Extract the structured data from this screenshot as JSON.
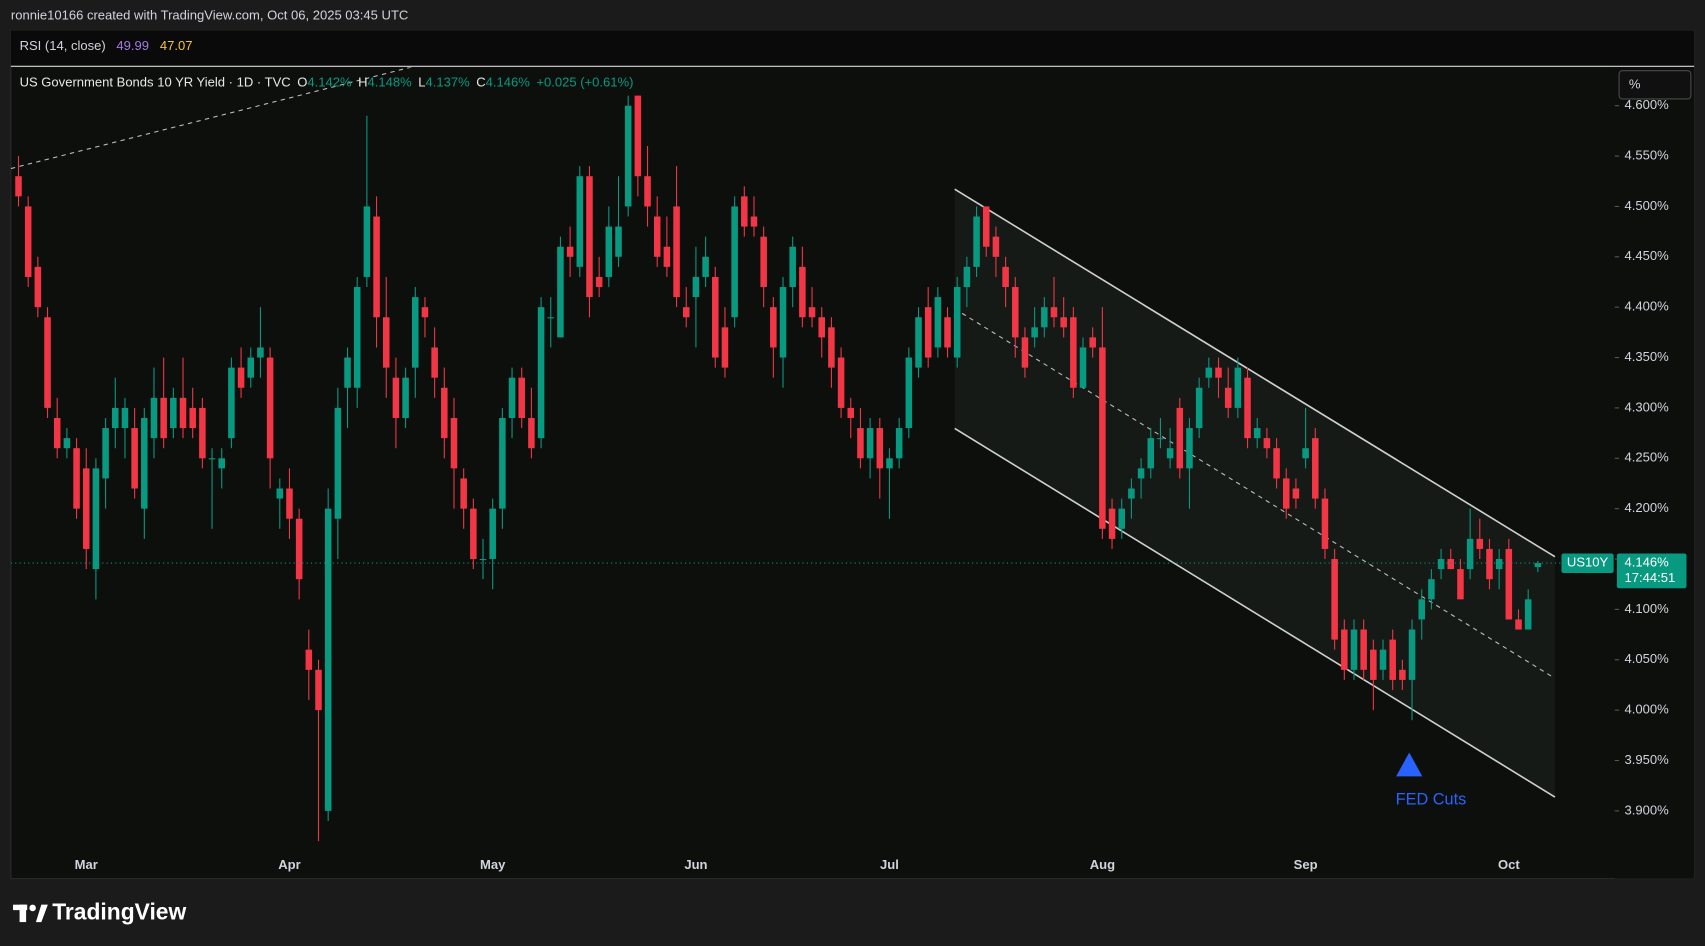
{
  "header": {
    "credit": "ronnie10166 created with TradingView.com, Oct 06, 2025 03:45 UTC"
  },
  "indicator": {
    "name": "RSI (14, close)",
    "value1": "49.99",
    "value2": "47.07"
  },
  "legend": {
    "symbol": "US Government Bonds 10 YR Yield · 1D · TVC",
    "open_label": "O",
    "open": "4.142%",
    "high_label": "H",
    "high": "4.148%",
    "low_label": "L",
    "low": "4.137%",
    "close_label": "C",
    "close": "4.146%",
    "change": "+0.025 (+0.61%)"
  },
  "scale_button": "%",
  "price_tag": {
    "ticker": "US10Y",
    "price": "4.146%",
    "countdown": "17:44:51"
  },
  "annotation": "FED Cuts",
  "logo": "TradingView",
  "chart_data": {
    "type": "candlestick",
    "up_color": "#089981",
    "down_color": "#f23645",
    "ylim": [
      3.863,
      4.638
    ],
    "yticks": [
      {
        "value": 3.9,
        "label": "3.900%"
      },
      {
        "value": 3.95,
        "label": "3.950%"
      },
      {
        "value": 4.0,
        "label": "4.000%"
      },
      {
        "value": 4.05,
        "label": "4.050%"
      },
      {
        "value": 4.1,
        "label": "4.100%"
      },
      {
        "value": 4.15,
        "label": "4.150%"
      },
      {
        "value": 4.2,
        "label": "4.200%"
      },
      {
        "value": 4.25,
        "label": "4.250%"
      },
      {
        "value": 4.3,
        "label": "4.300%"
      },
      {
        "value": 4.35,
        "label": "4.350%"
      },
      {
        "value": 4.4,
        "label": "4.400%"
      },
      {
        "value": 4.45,
        "label": "4.450%"
      },
      {
        "value": 4.5,
        "label": "4.500%"
      },
      {
        "value": 4.55,
        "label": "4.550%"
      },
      {
        "value": 4.6,
        "label": "4.600%"
      }
    ],
    "categories": [
      null,
      null,
      null,
      null,
      null,
      null,
      null,
      "Mar",
      null,
      null,
      null,
      null,
      null,
      null,
      null,
      null,
      null,
      null,
      null,
      null,
      null,
      null,
      null,
      null,
      null,
      null,
      null,
      null,
      "Apr",
      null,
      null,
      null,
      null,
      null,
      null,
      null,
      null,
      null,
      null,
      null,
      null,
      null,
      null,
      null,
      null,
      null,
      null,
      null,
      null,
      "May",
      null,
      null,
      null,
      null,
      null,
      null,
      null,
      null,
      null,
      null,
      null,
      null,
      null,
      null,
      null,
      null,
      null,
      null,
      null,
      null,
      "Jun",
      null,
      null,
      null,
      null,
      null,
      null,
      null,
      null,
      null,
      null,
      null,
      null,
      null,
      null,
      null,
      null,
      null,
      null,
      null,
      "Jul",
      null,
      null,
      null,
      null,
      null,
      null,
      null,
      null,
      null,
      null,
      null,
      null,
      null,
      null,
      null,
      null,
      null,
      null,
      null,
      null,
      null,
      "Aug",
      null,
      null,
      null,
      null,
      null,
      null,
      null,
      null,
      null,
      null,
      null,
      null,
      null,
      null,
      null,
      null,
      null,
      null,
      null,
      null,
      "Sep",
      null,
      null,
      null,
      null,
      null,
      null,
      null,
      null,
      null,
      null,
      null,
      null,
      null,
      null,
      null,
      null,
      null,
      null,
      null,
      null,
      "Oct",
      null,
      null,
      null
    ],
    "ohlc": [
      [
        4.53,
        4.55,
        4.5,
        4.51
      ],
      [
        4.5,
        4.51,
        4.42,
        4.43
      ],
      [
        4.44,
        4.45,
        4.39,
        4.4
      ],
      [
        4.39,
        4.4,
        4.29,
        4.3
      ],
      [
        4.29,
        4.31,
        4.25,
        4.26
      ],
      [
        4.26,
        4.28,
        4.25,
        4.27
      ],
      [
        4.26,
        4.27,
        4.19,
        4.2
      ],
      [
        4.24,
        4.26,
        4.14,
        4.16
      ],
      [
        4.14,
        4.25,
        4.11,
        4.24
      ],
      [
        4.23,
        4.29,
        4.2,
        4.28
      ],
      [
        4.28,
        4.33,
        4.26,
        4.3
      ],
      [
        4.28,
        4.31,
        4.25,
        4.3
      ],
      [
        4.28,
        4.3,
        4.21,
        4.22
      ],
      [
        4.2,
        4.3,
        4.17,
        4.29
      ],
      [
        4.27,
        4.34,
        4.25,
        4.31
      ],
      [
        4.31,
        4.35,
        4.26,
        4.27
      ],
      [
        4.28,
        4.32,
        4.27,
        4.31
      ],
      [
        4.31,
        4.35,
        4.27,
        4.28
      ],
      [
        4.3,
        4.32,
        4.27,
        4.28
      ],
      [
        4.3,
        4.31,
        4.24,
        4.25
      ],
      [
        4.25,
        4.26,
        4.18,
        4.25
      ],
      [
        4.24,
        4.26,
        4.22,
        4.25
      ],
      [
        4.27,
        4.35,
        4.26,
        4.34
      ],
      [
        4.34,
        4.36,
        4.31,
        4.32
      ],
      [
        4.33,
        4.36,
        4.32,
        4.35
      ],
      [
        4.35,
        4.4,
        4.33,
        4.36
      ],
      [
        4.35,
        4.36,
        4.22,
        4.25
      ],
      [
        4.21,
        4.23,
        4.18,
        4.22
      ],
      [
        4.22,
        4.24,
        4.17,
        4.19
      ],
      [
        4.19,
        4.2,
        4.11,
        4.13
      ],
      [
        4.06,
        4.08,
        4.01,
        4.04
      ],
      [
        4.04,
        4.05,
        3.87,
        4.0
      ],
      [
        3.9,
        4.22,
        3.89,
        4.2
      ],
      [
        4.19,
        4.32,
        4.15,
        4.3
      ],
      [
        4.32,
        4.36,
        4.28,
        4.35
      ],
      [
        4.32,
        4.43,
        4.3,
        4.42
      ],
      [
        4.43,
        4.59,
        4.42,
        4.5
      ],
      [
        4.49,
        4.51,
        4.36,
        4.39
      ],
      [
        4.39,
        4.43,
        4.31,
        4.34
      ],
      [
        4.33,
        4.35,
        4.26,
        4.29
      ],
      [
        4.29,
        4.34,
        4.28,
        4.33
      ],
      [
        4.34,
        4.42,
        4.31,
        4.41
      ],
      [
        4.4,
        4.41,
        4.37,
        4.39
      ],
      [
        4.36,
        4.38,
        4.31,
        4.33
      ],
      [
        4.32,
        4.34,
        4.25,
        4.27
      ],
      [
        4.29,
        4.31,
        4.2,
        4.24
      ],
      [
        4.23,
        4.24,
        4.18,
        4.2
      ],
      [
        4.2,
        4.21,
        4.14,
        4.15
      ],
      [
        4.15,
        4.17,
        4.13,
        4.15
      ],
      [
        4.15,
        4.21,
        4.12,
        4.2
      ],
      [
        4.2,
        4.3,
        4.18,
        4.29
      ],
      [
        4.29,
        4.34,
        4.27,
        4.33
      ],
      [
        4.33,
        4.34,
        4.28,
        4.29
      ],
      [
        4.29,
        4.32,
        4.25,
        4.26
      ],
      [
        4.27,
        4.41,
        4.26,
        4.4
      ],
      [
        4.39,
        4.41,
        4.36,
        4.39
      ],
      [
        4.37,
        4.47,
        4.37,
        4.46
      ],
      [
        4.46,
        4.48,
        4.43,
        4.45
      ],
      [
        4.44,
        4.54,
        4.43,
        4.53
      ],
      [
        4.53,
        4.54,
        4.39,
        4.41
      ],
      [
        4.43,
        4.45,
        4.41,
        4.42
      ],
      [
        4.43,
        4.5,
        4.42,
        4.48
      ],
      [
        4.45,
        4.53,
        4.44,
        4.48
      ],
      [
        4.5,
        4.61,
        4.49,
        4.6
      ],
      [
        4.61,
        4.61,
        4.51,
        4.53
      ],
      [
        4.53,
        4.56,
        4.48,
        4.5
      ],
      [
        4.49,
        4.51,
        4.44,
        4.45
      ],
      [
        4.46,
        4.49,
        4.43,
        4.44
      ],
      [
        4.5,
        4.54,
        4.4,
        4.41
      ],
      [
        4.4,
        4.42,
        4.38,
        4.39
      ],
      [
        4.41,
        4.46,
        4.36,
        4.43
      ],
      [
        4.43,
        4.47,
        4.42,
        4.45
      ],
      [
        4.43,
        4.44,
        4.34,
        4.35
      ],
      [
        4.38,
        4.4,
        4.33,
        4.34
      ],
      [
        4.39,
        4.51,
        4.38,
        4.5
      ],
      [
        4.51,
        4.52,
        4.47,
        4.48
      ],
      [
        4.49,
        4.51,
        4.47,
        4.48
      ],
      [
        4.47,
        4.48,
        4.4,
        4.42
      ],
      [
        4.4,
        4.41,
        4.33,
        4.36
      ],
      [
        4.35,
        4.43,
        4.32,
        4.42
      ],
      [
        4.42,
        4.47,
        4.4,
        4.46
      ],
      [
        4.44,
        4.46,
        4.38,
        4.39
      ],
      [
        4.4,
        4.42,
        4.38,
        4.39
      ],
      [
        4.39,
        4.4,
        4.35,
        4.37
      ],
      [
        4.38,
        4.39,
        4.32,
        4.34
      ],
      [
        4.35,
        4.36,
        4.29,
        4.3
      ],
      [
        4.3,
        4.31,
        4.27,
        4.29
      ],
      [
        4.28,
        4.3,
        4.24,
        4.25
      ],
      [
        4.25,
        4.29,
        4.23,
        4.28
      ],
      [
        4.28,
        4.29,
        4.21,
        4.24
      ],
      [
        4.24,
        4.26,
        4.19,
        4.25
      ],
      [
        4.25,
        4.29,
        4.24,
        4.28
      ],
      [
        4.28,
        4.36,
        4.27,
        4.35
      ],
      [
        4.34,
        4.4,
        4.33,
        4.39
      ],
      [
        4.4,
        4.42,
        4.34,
        4.35
      ],
      [
        4.36,
        4.42,
        4.35,
        4.41
      ],
      [
        4.39,
        4.4,
        4.35,
        4.36
      ],
      [
        4.35,
        4.43,
        4.34,
        4.42
      ],
      [
        4.42,
        4.45,
        4.4,
        4.44
      ],
      [
        4.44,
        4.5,
        4.43,
        4.49
      ],
      [
        4.5,
        4.5,
        4.45,
        4.46
      ],
      [
        4.47,
        4.48,
        4.43,
        4.45
      ],
      [
        4.44,
        4.45,
        4.4,
        4.42
      ],
      [
        4.42,
        4.43,
        4.35,
        4.37
      ],
      [
        4.37,
        4.38,
        4.33,
        4.34
      ],
      [
        4.37,
        4.4,
        4.36,
        4.38
      ],
      [
        4.38,
        4.41,
        4.37,
        4.4
      ],
      [
        4.4,
        4.43,
        4.38,
        4.39
      ],
      [
        4.39,
        4.41,
        4.37,
        4.38
      ],
      [
        4.39,
        4.4,
        4.31,
        4.32
      ],
      [
        4.32,
        4.37,
        4.32,
        4.36
      ],
      [
        4.37,
        4.38,
        4.35,
        4.36
      ],
      [
        4.36,
        4.4,
        4.17,
        4.18
      ],
      [
        4.2,
        4.21,
        4.16,
        4.17
      ],
      [
        4.18,
        4.21,
        4.17,
        4.2
      ],
      [
        4.21,
        4.23,
        4.19,
        4.22
      ],
      [
        4.23,
        4.25,
        4.21,
        4.24
      ],
      [
        4.24,
        4.28,
        4.23,
        4.27
      ],
      [
        4.27,
        4.29,
        4.26,
        4.27
      ],
      [
        4.25,
        4.28,
        4.24,
        4.26
      ],
      [
        4.3,
        4.31,
        4.23,
        4.24
      ],
      [
        4.24,
        4.29,
        4.2,
        4.28
      ],
      [
        4.28,
        4.33,
        4.27,
        4.32
      ],
      [
        4.33,
        4.35,
        4.32,
        4.34
      ],
      [
        4.34,
        4.35,
        4.31,
        4.33
      ],
      [
        4.32,
        4.34,
        4.29,
        4.3
      ],
      [
        4.3,
        4.35,
        4.29,
        4.34
      ],
      [
        4.33,
        4.34,
        4.26,
        4.27
      ],
      [
        4.27,
        4.29,
        4.26,
        4.28
      ],
      [
        4.27,
        4.28,
        4.25,
        4.26
      ],
      [
        4.26,
        4.27,
        4.22,
        4.23
      ],
      [
        4.23,
        4.24,
        4.19,
        4.2
      ],
      [
        4.22,
        4.23,
        4.2,
        4.21
      ],
      [
        4.25,
        4.3,
        4.24,
        4.26
      ],
      [
        4.27,
        4.28,
        4.2,
        4.21
      ],
      [
        4.21,
        4.22,
        4.15,
        4.16
      ],
      [
        4.15,
        4.16,
        4.06,
        4.07
      ],
      [
        4.08,
        4.09,
        4.03,
        4.04
      ],
      [
        4.04,
        4.09,
        4.03,
        4.08
      ],
      [
        4.08,
        4.09,
        4.03,
        4.04
      ],
      [
        4.06,
        4.07,
        4.0,
        4.03
      ],
      [
        4.04,
        4.07,
        4.03,
        4.06
      ],
      [
        4.07,
        4.08,
        4.02,
        4.03
      ],
      [
        4.04,
        4.05,
        4.02,
        4.03
      ],
      [
        4.03,
        4.09,
        3.99,
        4.08
      ],
      [
        4.09,
        4.12,
        4.07,
        4.11
      ],
      [
        4.11,
        4.14,
        4.1,
        4.13
      ],
      [
        4.14,
        4.16,
        4.13,
        4.15
      ],
      [
        4.15,
        4.16,
        4.14,
        4.14
      ],
      [
        4.14,
        4.15,
        4.11,
        4.11
      ],
      [
        4.14,
        4.2,
        4.13,
        4.17
      ],
      [
        4.17,
        4.19,
        4.15,
        4.16
      ],
      [
        4.16,
        4.17,
        4.12,
        4.13
      ],
      [
        4.14,
        4.16,
        4.12,
        4.15
      ],
      [
        4.16,
        4.17,
        4.09,
        4.09
      ],
      [
        4.09,
        4.1,
        4.08,
        4.08
      ],
      [
        4.08,
        4.12,
        4.08,
        4.11
      ],
      [
        4.142,
        4.148,
        4.137,
        4.146
      ]
    ]
  }
}
